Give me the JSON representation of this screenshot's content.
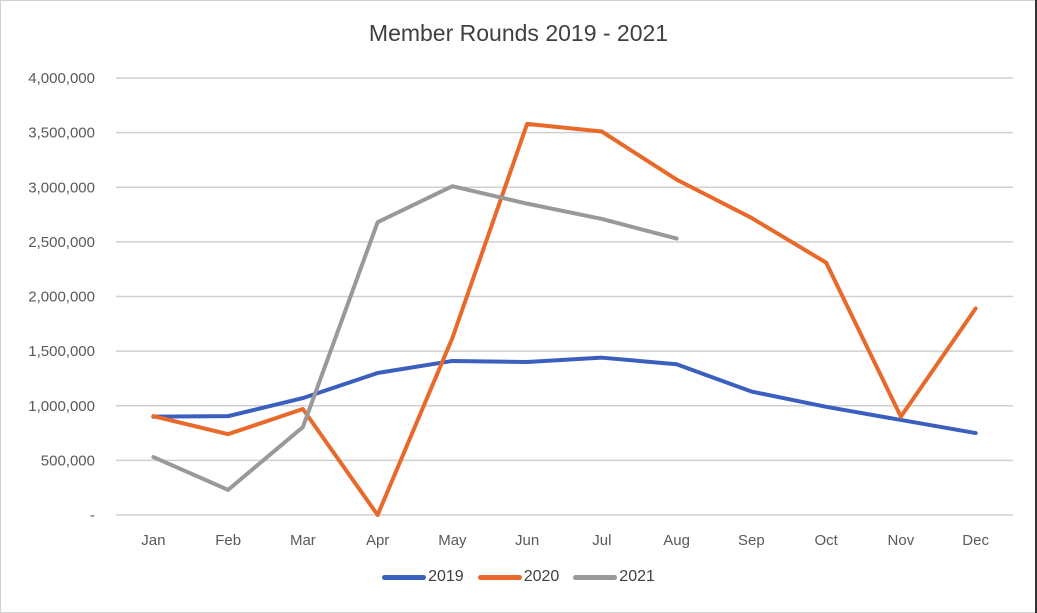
{
  "chart_data": {
    "type": "line",
    "title": "Member Rounds 2019 - 2021",
    "xlabel": "",
    "ylabel": "",
    "ylim": [
      0,
      4000000
    ],
    "grid": true,
    "legend_position": "bottom",
    "y_ticks": [
      "-",
      "500,000",
      "1,000,000",
      "1,500,000",
      "2,000,000",
      "2,500,000",
      "3,000,000",
      "3,500,000",
      "4,000,000"
    ],
    "categories": [
      "Jan",
      "Feb",
      "Mar",
      "Apr",
      "May",
      "Jun",
      "Jul",
      "Aug",
      "Sep",
      "Oct",
      "Nov",
      "Dec"
    ],
    "series": [
      {
        "name": "2019",
        "color": "#3A5FBF",
        "values": [
          900000,
          905000,
          1070000,
          1300000,
          1410000,
          1400000,
          1440000,
          1380000,
          1130000,
          990000,
          870000,
          750000
        ]
      },
      {
        "name": "2020",
        "color": "#E8692A",
        "values": [
          905000,
          740000,
          970000,
          0,
          1620000,
          3580000,
          3510000,
          3070000,
          2720000,
          2310000,
          900000,
          1890000
        ]
      },
      {
        "name": "2021",
        "color": "#999999",
        "values": [
          530000,
          230000,
          805000,
          2680000,
          3010000,
          2850000,
          2710000,
          2530000,
          null,
          null,
          null,
          null
        ]
      }
    ]
  }
}
